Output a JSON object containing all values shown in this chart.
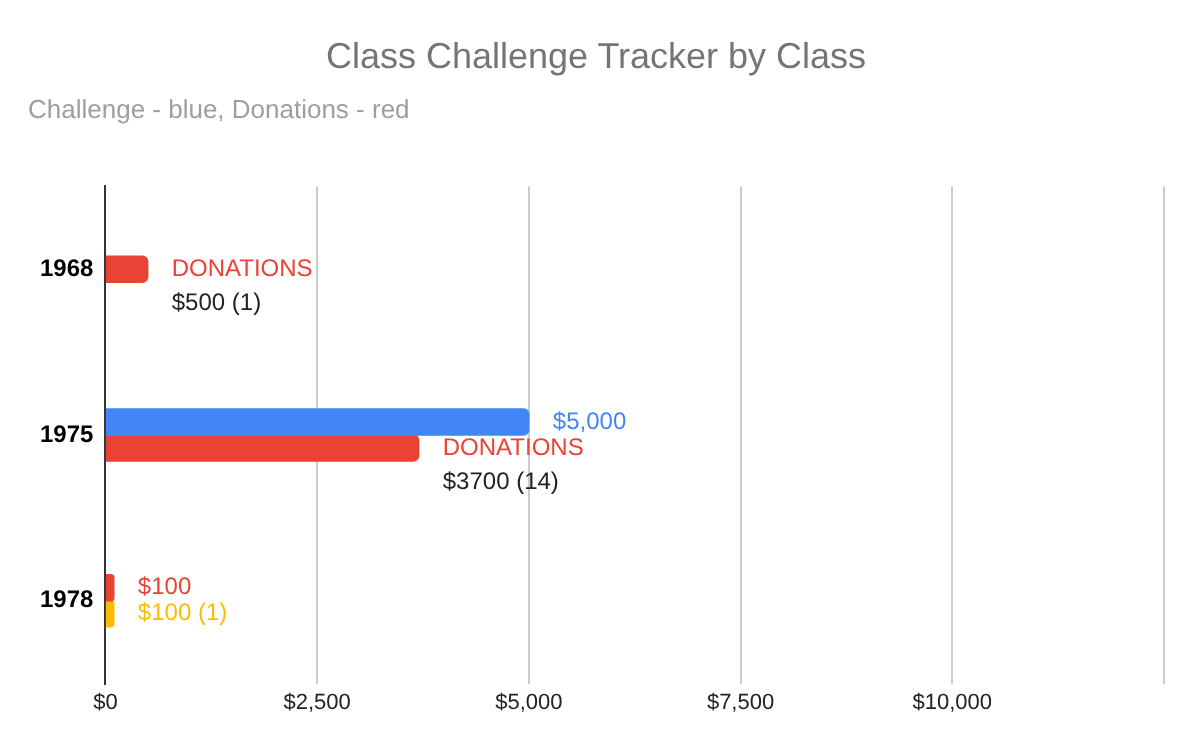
{
  "chart_data": {
    "type": "bar",
    "orientation": "horizontal",
    "title": "Class Challenge Tracker by Class",
    "subtitle": "Challenge - blue, Donations - red",
    "categories": [
      "1968",
      "1975",
      "1978"
    ],
    "series": [
      {
        "color": "#4285f4",
        "values": [
          null,
          5000,
          null
        ],
        "value_labels": [
          null,
          "$5,000",
          null
        ]
      },
      {
        "color": "#ea4335",
        "values": [
          500,
          3700,
          100
        ],
        "value_labels": [
          "DONATIONS\n$500 (1)",
          "DONATIONS\n$3700 (14)",
          "$100"
        ]
      },
      {
        "color": "#fbbc04",
        "values": [
          null,
          null,
          100
        ],
        "value_labels": [
          null,
          null,
          "$100 (1)"
        ]
      }
    ],
    "xlim": [
      0,
      12500
    ],
    "xticks": [
      {
        "value": 0,
        "label": "$0"
      },
      {
        "value": 2500,
        "label": "$2,500"
      },
      {
        "value": 5000,
        "label": "$5,000"
      },
      {
        "value": 7500,
        "label": "$7,500"
      },
      {
        "value": 10000,
        "label": "$10,000"
      },
      {
        "value": 12500,
        "label": null
      }
    ],
    "grid": "x"
  }
}
